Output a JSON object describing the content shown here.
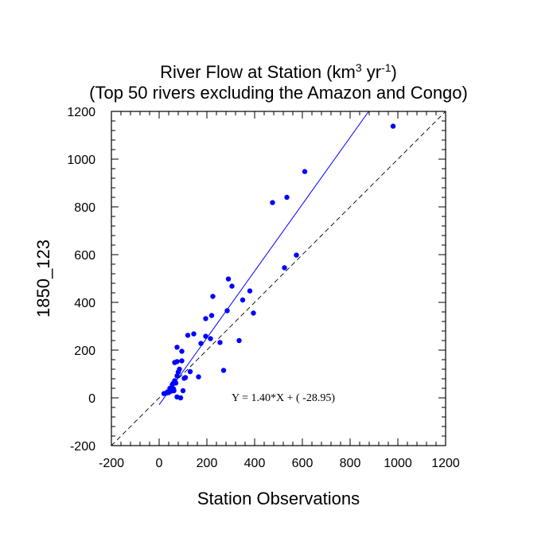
{
  "chart_data": {
    "type": "scatter",
    "title_line1_pre": "River Flow at Station (km",
    "title_line1_sup1": "3",
    "title_line1_mid": " yr",
    "title_line1_sup2": "-1",
    "title_line1_post": ")",
    "title_line2": "(Top 50 rivers excluding the Amazon and Congo)",
    "xlabel": "Station Observations",
    "ylabel": "1850_123",
    "xlim": [
      -200,
      1200
    ],
    "ylim": [
      -200,
      1200
    ],
    "xticks": [
      -200,
      0,
      200,
      400,
      600,
      800,
      1000,
      1200
    ],
    "yticks": [
      -200,
      0,
      200,
      400,
      600,
      800,
      1000,
      1200
    ],
    "regression": {
      "slope": 1.4,
      "intercept": -28.95,
      "label": "Y =  1.40*X + (  -28.95)",
      "label_at": [
        520,
        0
      ]
    },
    "colors": {
      "points": "#0000ff",
      "regression_line": "#0000ff",
      "one_to_one_line": "#000000"
    },
    "points": [
      [
        980,
        1138
      ],
      [
        610,
        948
      ],
      [
        535,
        840
      ],
      [
        475,
        818
      ],
      [
        575,
        598
      ],
      [
        525,
        545
      ],
      [
        290,
        498
      ],
      [
        305,
        468
      ],
      [
        225,
        425
      ],
      [
        380,
        448
      ],
      [
        350,
        410
      ],
      [
        395,
        355
      ],
      [
        285,
        365
      ],
      [
        220,
        345
      ],
      [
        195,
        332
      ],
      [
        145,
        268
      ],
      [
        120,
        262
      ],
      [
        255,
        232
      ],
      [
        335,
        240
      ],
      [
        175,
        228
      ],
      [
        195,
        258
      ],
      [
        215,
        248
      ],
      [
        75,
        212
      ],
      [
        95,
        195
      ],
      [
        65,
        148
      ],
      [
        75,
        152
      ],
      [
        95,
        155
      ],
      [
        130,
        110
      ],
      [
        165,
        88
      ],
      [
        270,
        115
      ],
      [
        80,
        108
      ],
      [
        75,
        92
      ],
      [
        105,
        82
      ],
      [
        65,
        72
      ],
      [
        70,
        62
      ],
      [
        58,
        60
      ],
      [
        55,
        55
      ],
      [
        60,
        38
      ],
      [
        50,
        28
      ],
      [
        62,
        30
      ],
      [
        40,
        22
      ],
      [
        100,
        30
      ],
      [
        30,
        20
      ],
      [
        20,
        18
      ],
      [
        75,
        4
      ],
      [
        90,
        0
      ],
      [
        110,
        85
      ],
      [
        85,
        120
      ],
      [
        45,
        40
      ],
      [
        35,
        25
      ]
    ]
  }
}
